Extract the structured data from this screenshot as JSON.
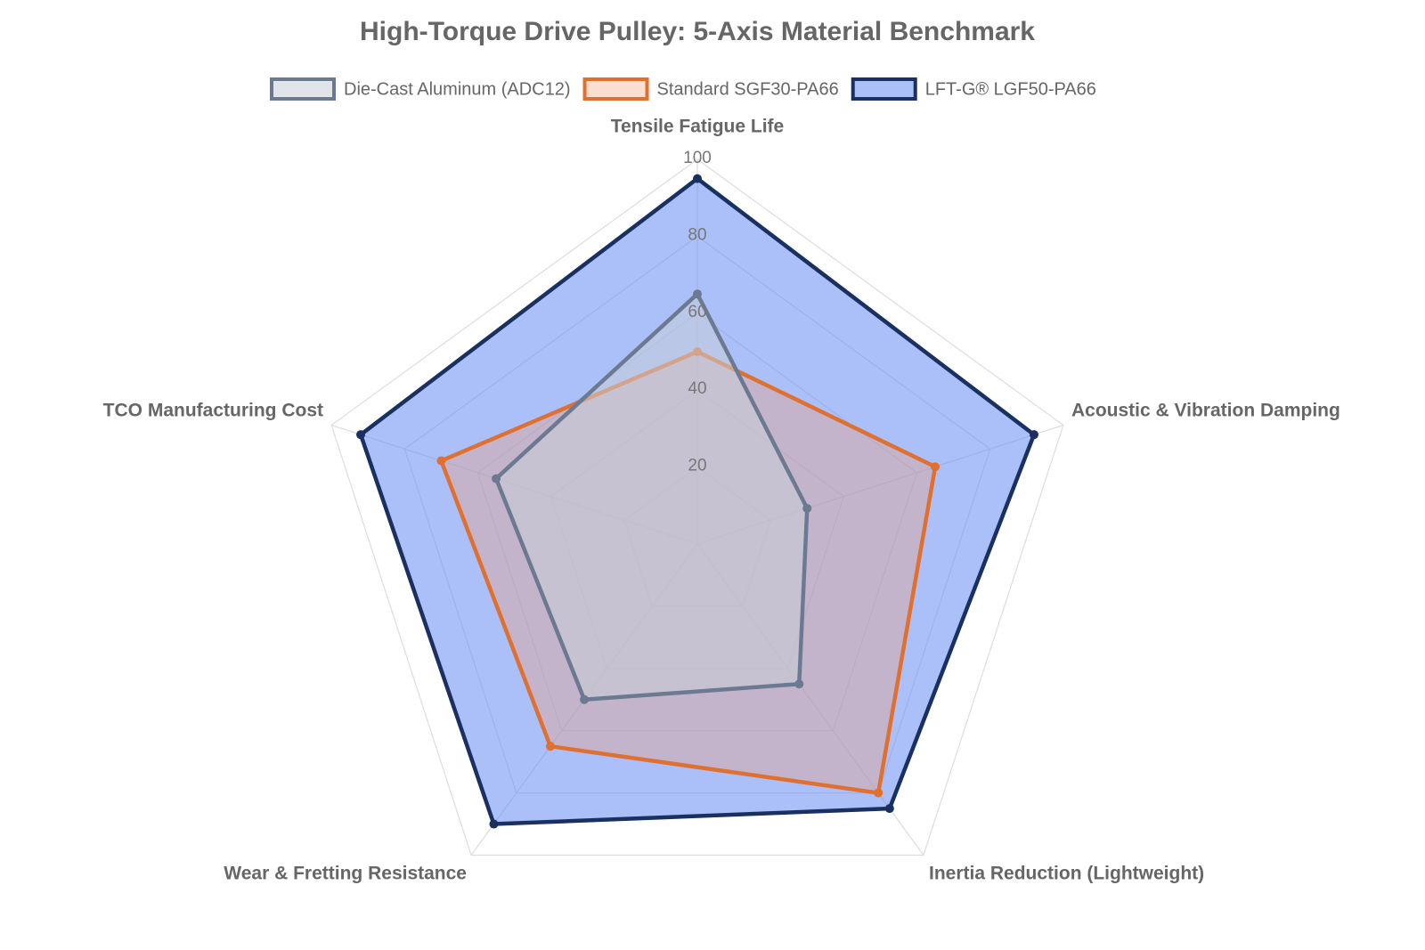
{
  "chart_data": {
    "type": "radar",
    "title": "High-Torque Drive Pulley: 5-Axis Material Benchmark",
    "categories": [
      "Tensile Fatigue Life",
      "Acoustic & Vibration Damping",
      "Inertia Reduction (Lightweight)",
      "Wear & Fretting Resistance",
      "TCO Manufacturing Cost"
    ],
    "series": [
      {
        "name": "Die-Cast Aluminum (ADC12)",
        "color": "#6b7a90",
        "fill": "rgba(200,205,215,0.55)",
        "values": [
          65,
          30,
          45,
          50,
          55
        ]
      },
      {
        "name": "Standard SGF30-PA66",
        "color": "#e07030",
        "fill": "rgba(240,160,120,0.35)",
        "values": [
          50,
          65,
          80,
          65,
          70
        ]
      },
      {
        "name": "LFT-G® LGF50-PA66",
        "color": "#1a3060",
        "fill": "rgba(110,145,245,0.58)",
        "values": [
          95,
          92,
          85,
          90,
          92
        ]
      }
    ],
    "rlim": [
      0,
      100
    ],
    "rticks": [
      20,
      40,
      60,
      80,
      100
    ],
    "grid": true,
    "legend": "top"
  }
}
